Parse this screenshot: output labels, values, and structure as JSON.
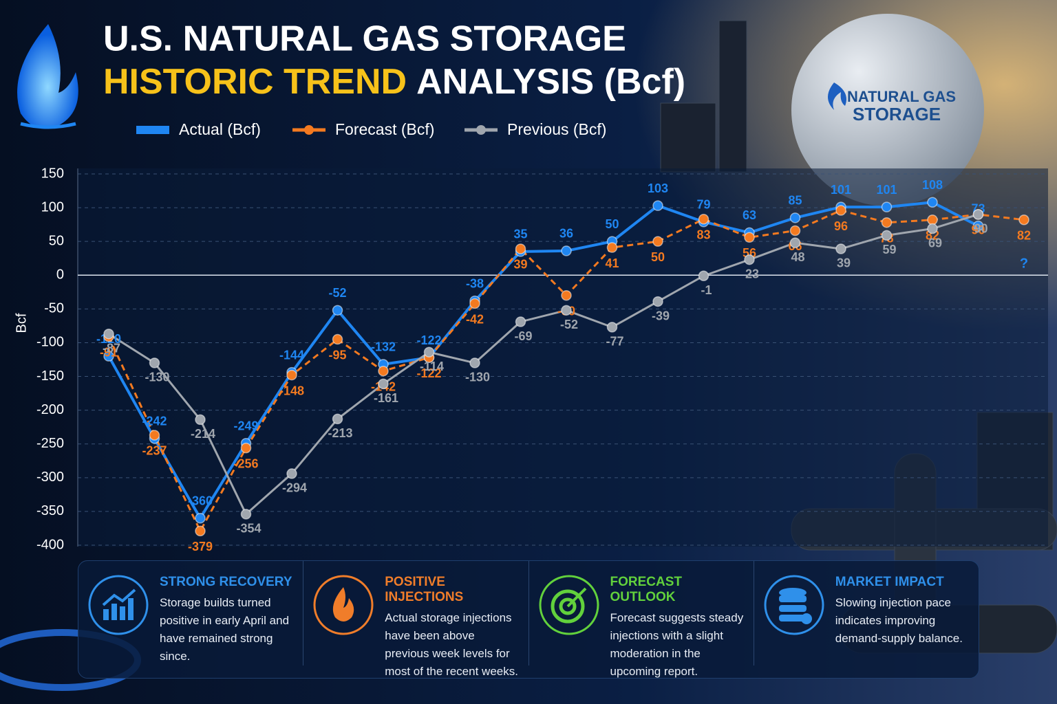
{
  "header": {
    "title_line1": "U.S. NATURAL GAS STORAGE",
    "title_highlight": "HISTORIC TREND",
    "title_rest": "ANALYSIS (Bcf)"
  },
  "background": {
    "tank_label_1": "NATURAL GAS",
    "tank_label_2": "STORAGE"
  },
  "chart_data": {
    "type": "line",
    "y_label": "Bcf",
    "categories": [
      null,
      null,
      null,
      null,
      null,
      null,
      null,
      null,
      null,
      null,
      null,
      null,
      null,
      null,
      null,
      null,
      null,
      null,
      null,
      null,
      null
    ],
    "series": [
      {
        "name": "Actual (Bcf)",
        "color": "#1f86f2",
        "values": [
          -120,
          -242,
          -360,
          -249,
          -144,
          -52,
          -132,
          -122,
          -38,
          35,
          36,
          50,
          103,
          79,
          63,
          85,
          101,
          101,
          108,
          73,
          null
        ]
      },
      {
        "name": "Forecast (Bcf)",
        "color": "#f47a20",
        "values": [
          -91,
          -237,
          -379,
          -256,
          -148,
          -95,
          -142,
          -122,
          -42,
          39,
          -30,
          41,
          50,
          83,
          56,
          66,
          96,
          78,
          82,
          90,
          82
        ]
      },
      {
        "name": "Previous (Bcf)",
        "color": "#a0a6ae",
        "values": [
          -87,
          -130,
          -214,
          -354,
          -294,
          -213,
          -161,
          -114,
          -130,
          -69,
          -52,
          -77,
          -39,
          -1,
          23,
          48,
          39,
          59,
          69,
          90,
          null
        ]
      }
    ],
    "annotations": [
      "?"
    ],
    "ylim": [
      -400,
      150
    ],
    "yticks": [
      -400,
      -350,
      -300,
      -250,
      -200,
      -150,
      -100,
      -50,
      0,
      50,
      100,
      150
    ],
    "grid": true
  },
  "cards": [
    {
      "title": "STRONG RECOVERY",
      "text": "Storage builds turned positive in early April and have remained strong since.",
      "color": "#2f90ea"
    },
    {
      "title": "POSITIVE INJECTIONS",
      "text": "Actual storage injections have been above previous week levels for most of the recent weeks.",
      "color": "#f07d2a"
    },
    {
      "title": "FORECAST OUTLOOK",
      "text": "Forecast suggests steady injections with a slight moderation in the upcoming report.",
      "color": "#62d13c"
    },
    {
      "title": "MARKET IMPACT",
      "text": "Slowing injection pace indicates improving demand-supply balance.",
      "color": "#2f90ea"
    }
  ]
}
